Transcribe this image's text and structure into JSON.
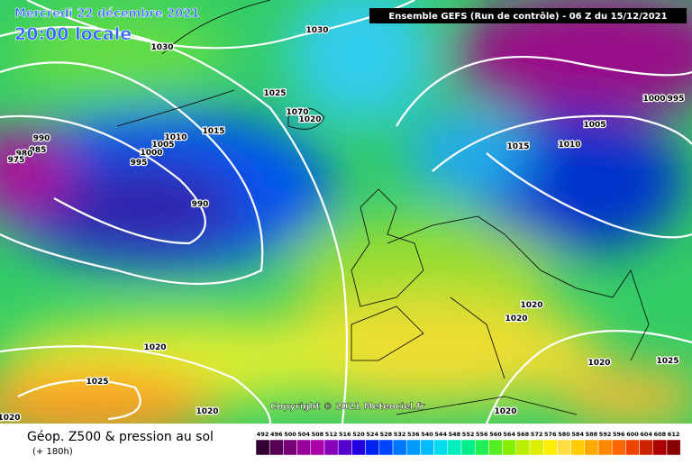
{
  "header": {
    "date": "Mercredi 22 décembre 2021",
    "time": "20:00 locale",
    "run": "Ensemble GEFS  (Run de contrôle)  - 06 Z du 15/12/2021"
  },
  "isobar_labels": [
    "1030",
    "1030",
    "1025",
    "1070",
    "1020",
    "1015",
    "1010",
    "1005",
    "1000",
    "995",
    "990",
    "985",
    "980",
    "975",
    "990",
    "1015",
    "1010",
    "1005",
    "1000",
    "995",
    "1020",
    "1020",
    "1020",
    "1025",
    "1020",
    "1020",
    "1020",
    "1020",
    "1025"
  ],
  "copyright": "Copyright © 2021 Meteociel.fr",
  "footer": {
    "title": "Géop. Z500 & pression au sol",
    "lead": "(+ 180h)"
  },
  "scale": {
    "labels": [
      "492",
      "496",
      "500",
      "504",
      "508",
      "512",
      "516",
      "520",
      "524",
      "528",
      "532",
      "536",
      "540",
      "544",
      "548",
      "552",
      "556",
      "560",
      "564",
      "568",
      "572",
      "576",
      "580",
      "584",
      "588",
      "592",
      "596",
      "600",
      "604",
      "608",
      "612"
    ]
  }
}
